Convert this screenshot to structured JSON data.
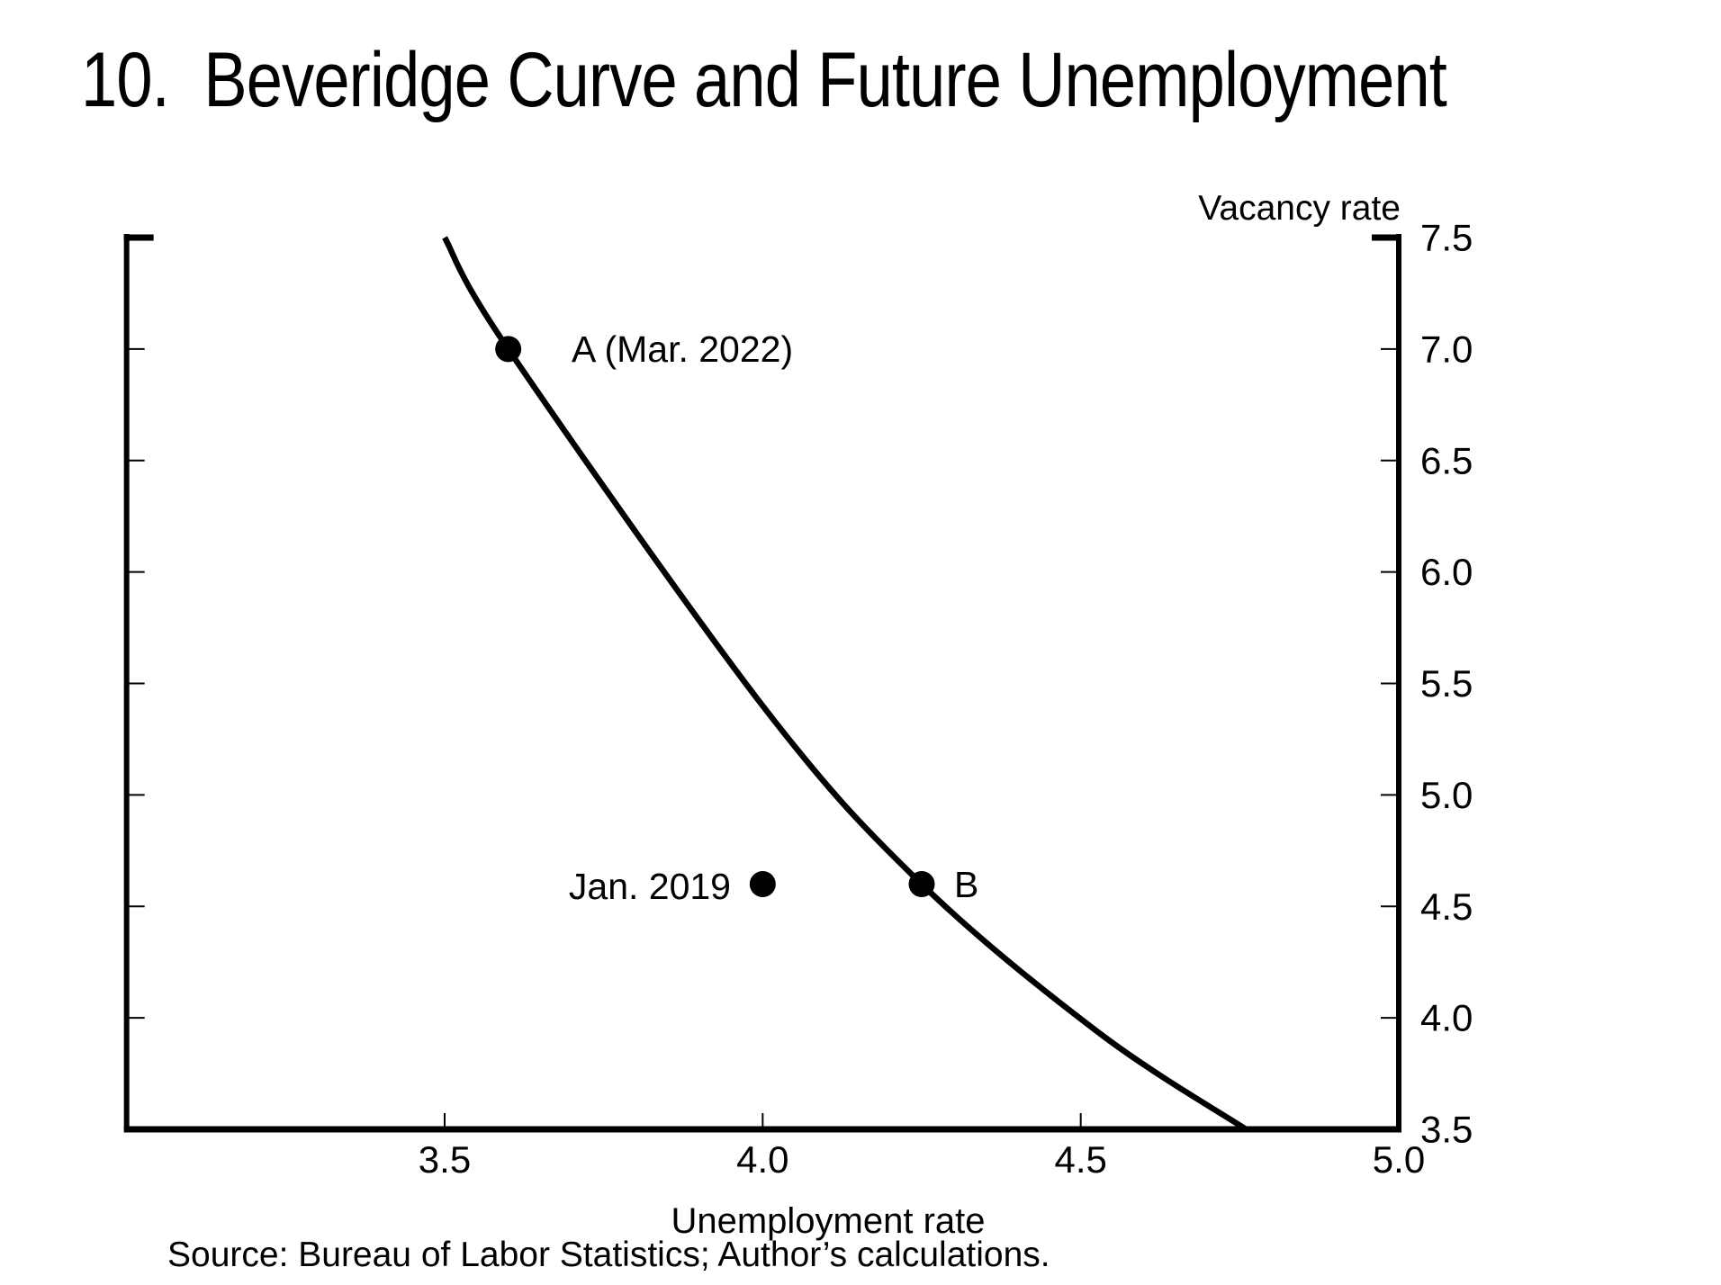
{
  "title": "10.  Beveridge Curve and Future Unemployment",
  "chart_data": {
    "type": "line",
    "title": "10.  Beveridge Curve and Future Unemployment",
    "xlabel": "Unemployment rate",
    "ylabel": "Vacancy rate",
    "grid": false,
    "legend": false,
    "x_axis": {
      "min": 3.0,
      "max": 5.0,
      "tick_values": [
        3.5,
        4.0,
        4.5,
        5.0
      ],
      "tick_labels": [
        "3.5",
        "4.0",
        "4.5",
        "5.0"
      ]
    },
    "y_axis": {
      "min": 3.5,
      "max": 7.5,
      "tick_values": [
        7.5,
        7.0,
        6.5,
        6.0,
        5.5,
        5.0,
        4.5,
        4.0,
        3.5
      ],
      "tick_labels": [
        "7.5",
        "7.0",
        "6.5",
        "6.0",
        "5.5",
        "5.0",
        "4.5",
        "4.0",
        "3.5"
      ]
    },
    "curve": {
      "name": "Beveridge curve",
      "points": [
        [
          3.5,
          7.5
        ],
        [
          3.6,
          7.0
        ],
        [
          4.0,
          5.4
        ],
        [
          4.25,
          4.6
        ],
        [
          4.53,
          3.93
        ],
        [
          4.76,
          3.5
        ]
      ]
    },
    "points": [
      {
        "id": "a",
        "label": "A (Mar. 2022)",
        "x": 3.6,
        "y": 7.0
      },
      {
        "id": "jan-2019",
        "label": "Jan. 2019",
        "x": 4.0,
        "y": 4.6
      },
      {
        "id": "b",
        "label": "B",
        "x": 4.25,
        "y": 4.6
      }
    ],
    "source": "Source: Bureau of Labor Statistics; Author’s calculations."
  }
}
